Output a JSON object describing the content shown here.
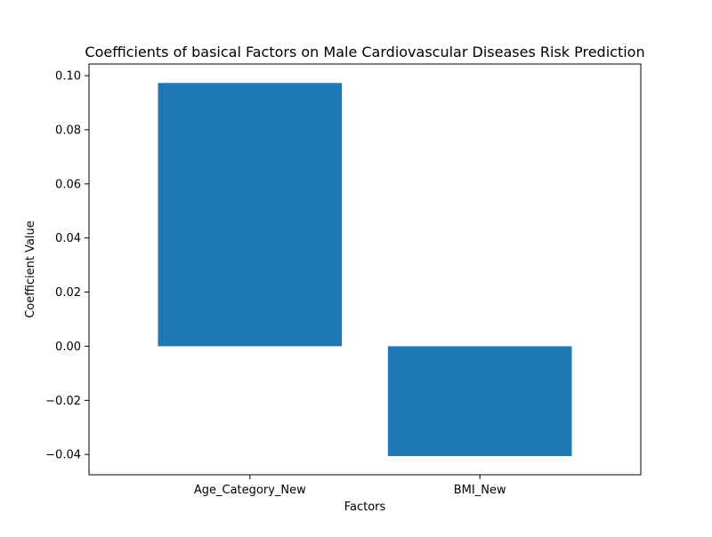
{
  "chart_data": {
    "type": "bar",
    "title": "Coefficients of basical Factors on Male Cardiovascular Diseases Risk Prediction",
    "xlabel": "Factors",
    "ylabel": "Coefficient Value",
    "categories": [
      "Age_Category_New",
      "BMI_New"
    ],
    "values": [
      0.0973,
      -0.0406
    ],
    "ylim": [
      -0.0475,
      0.1043
    ],
    "yticks": [
      -0.04,
      -0.02,
      0.0,
      0.02,
      0.04,
      0.06,
      0.08,
      0.1
    ],
    "ytick_labels": [
      "−0.04",
      "−0.02",
      "0.00",
      "0.02",
      "0.04",
      "0.06",
      "0.08",
      "0.10"
    ],
    "bar_color": "#1f77b4",
    "grid": false,
    "legend": null
  }
}
